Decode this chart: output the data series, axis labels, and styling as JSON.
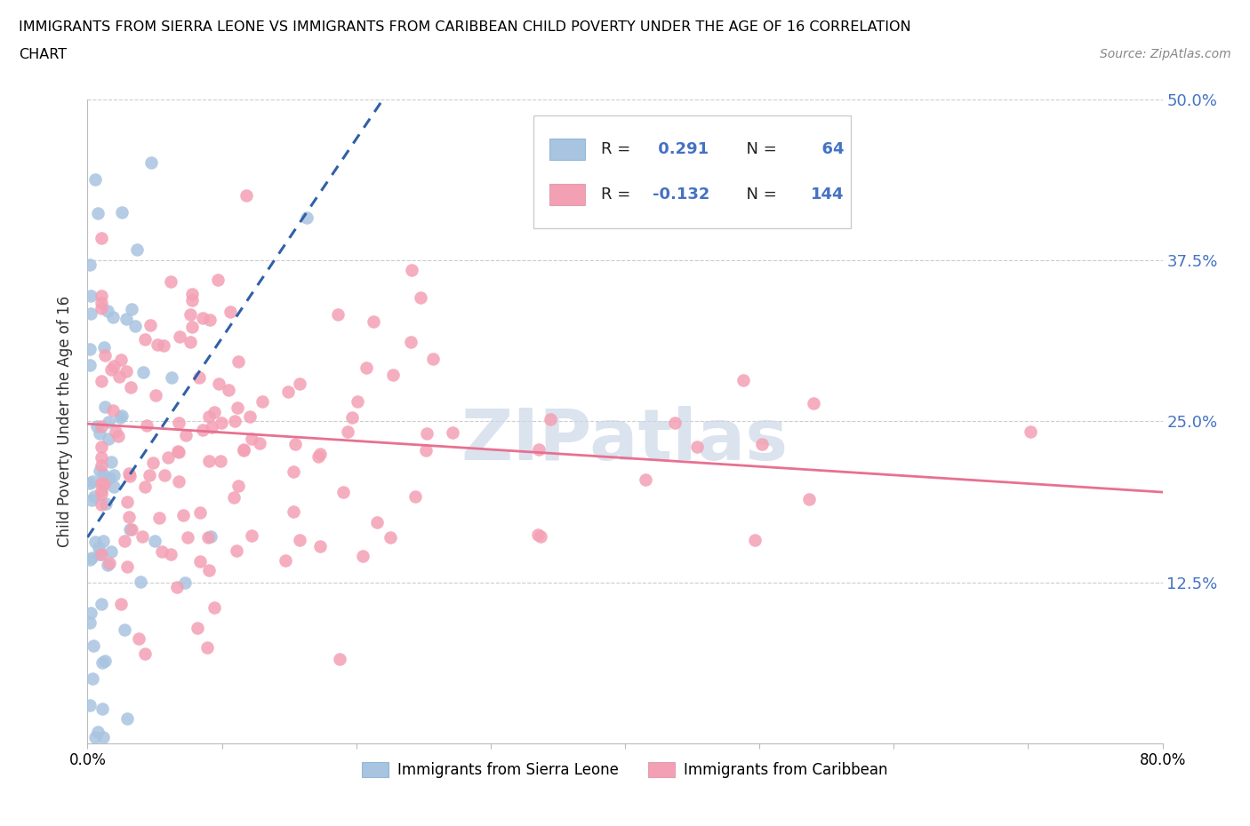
{
  "title_line1": "IMMIGRANTS FROM SIERRA LEONE VS IMMIGRANTS FROM CARIBBEAN CHILD POVERTY UNDER THE AGE OF 16 CORRELATION",
  "title_line2": "CHART",
  "source_text": "Source: ZipAtlas.com",
  "ylabel": "Child Poverty Under the Age of 16",
  "legend_bottom_labels": [
    "Immigrants from Sierra Leone",
    "Immigrants from Caribbean"
  ],
  "R_blue": 0.291,
  "N_blue": 64,
  "R_pink": -0.132,
  "N_pink": 144,
  "blue_color": "#a8c4e0",
  "blue_line_color": "#3060a8",
  "pink_color": "#f4a0b4",
  "pink_line_color": "#e87090",
  "xmin": 0.0,
  "xmax": 0.8,
  "ymin": 0.0,
  "ymax": 0.5,
  "yticks": [
    0.0,
    0.125,
    0.25,
    0.375,
    0.5
  ],
  "ytick_labels": [
    "",
    "12.5%",
    "25.0%",
    "37.5%",
    "50.0%"
  ],
  "watermark_text": "ZIPatlas",
  "watermark_color": "#ccd8e8",
  "blue_trend_x0": 0.0,
  "blue_trend_x1": 0.22,
  "blue_trend_y0": 0.16,
  "blue_trend_y1": 0.5,
  "pink_trend_x0": 0.0,
  "pink_trend_x1": 0.8,
  "pink_trend_y0": 0.248,
  "pink_trend_y1": 0.195
}
